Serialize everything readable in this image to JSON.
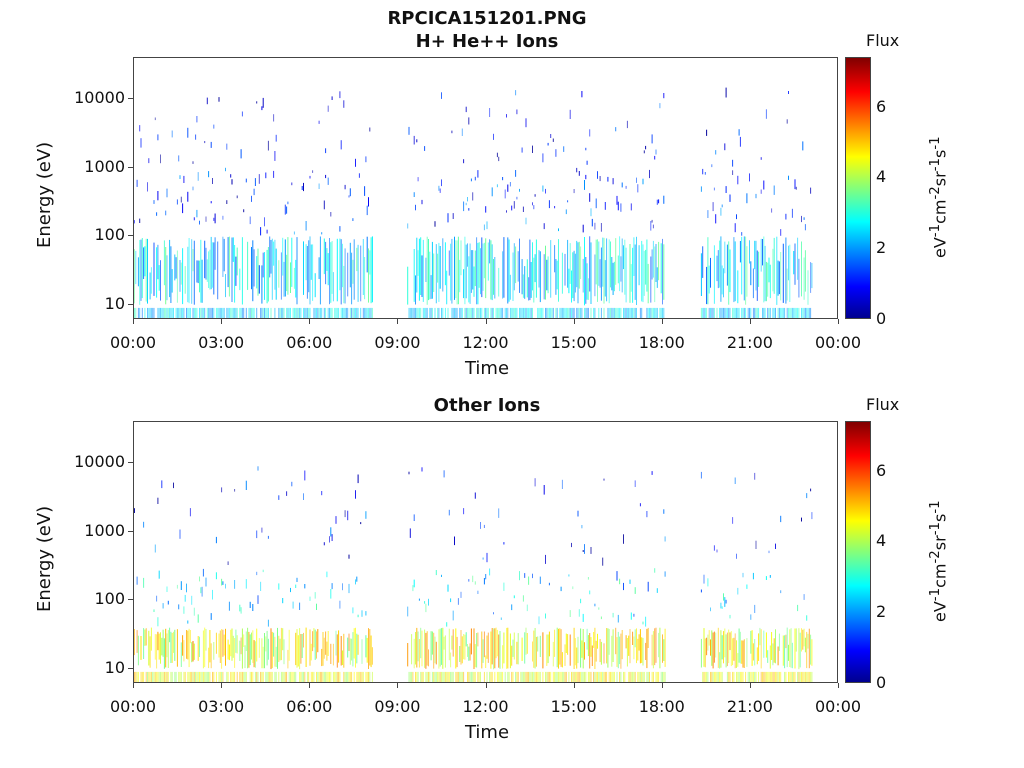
{
  "colors": {
    "background": "#ffffff",
    "axis": "#444444",
    "colormap": "jet"
  },
  "chart_data": [
    {
      "type": "heatmap",
      "title": "RPCICA151201.PNG",
      "subtitle": "H+ He++ Ions",
      "xlabel": "Time",
      "ylabel": "Energy (eV)",
      "x_ticks": [
        "00:00",
        "03:00",
        "06:00",
        "09:00",
        "12:00",
        "15:00",
        "18:00",
        "21:00",
        "00:00"
      ],
      "y_ticks": [
        "10",
        "100",
        "1000",
        "10000"
      ],
      "y_scale": "log",
      "ylim": [
        6,
        40000
      ],
      "colorbar": {
        "title": "Flux",
        "label": "eV-1cm-2sr-1s-1",
        "ticks": [
          "0",
          "2",
          "4",
          "6"
        ],
        "range": [
          0,
          7.4
        ]
      },
      "data_segments_hours": [
        [
          0.0,
          8.1
        ],
        [
          9.3,
          18.1
        ],
        [
          19.3,
          23.1
        ]
      ],
      "gap_hours": [
        [
          8.1,
          9.3
        ],
        [
          18.1,
          19.3
        ],
        [
          23.1,
          24.0
        ]
      ],
      "typical_flux": {
        "low_energy_10_100eV": 2.5,
        "mid_energy_100_1000eV": 1.2,
        "high_energy_1000_15000eV": 0.8
      }
    },
    {
      "type": "heatmap",
      "title": "Other Ions",
      "xlabel": "Time",
      "ylabel": "Energy (eV)",
      "x_ticks": [
        "00:00",
        "03:00",
        "06:00",
        "09:00",
        "12:00",
        "15:00",
        "18:00",
        "21:00",
        "00:00"
      ],
      "y_ticks": [
        "10",
        "100",
        "1000",
        "10000"
      ],
      "y_scale": "log",
      "ylim": [
        6,
        40000
      ],
      "colorbar": {
        "title": "Flux",
        "label": "eV-1cm-2sr-1s-1",
        "ticks": [
          "0",
          "2",
          "4",
          "6"
        ],
        "range": [
          0,
          7.4
        ]
      },
      "data_segments_hours": [
        [
          0.0,
          8.1
        ],
        [
          9.3,
          18.1
        ],
        [
          19.3,
          23.1
        ]
      ],
      "gap_hours": [
        [
          8.1,
          9.3
        ],
        [
          18.1,
          19.3
        ],
        [
          23.1,
          24.0
        ]
      ],
      "typical_flux": {
        "low_energy_10_40eV": 4.5,
        "mid_energy_40_300eV": 2.5,
        "high_energy_300_10000eV": 1.0
      }
    }
  ]
}
